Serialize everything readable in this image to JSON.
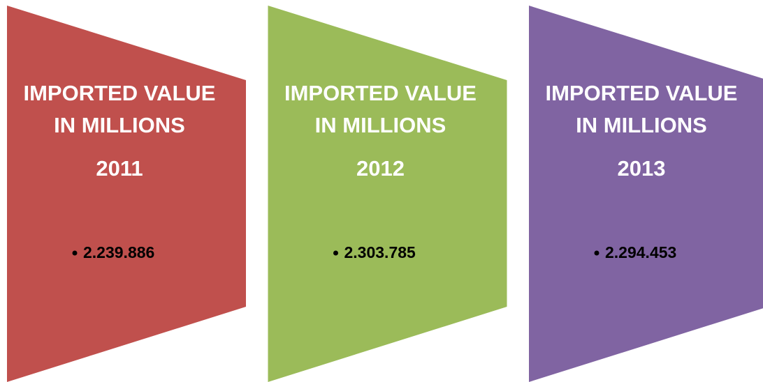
{
  "panels": [
    {
      "title_lines": [
        "IMPORTED VALUE",
        "IN MILLIONS"
      ],
      "year": "2011",
      "value": "2.239.886",
      "color": "#c0504d"
    },
    {
      "title_lines": [
        "IMPORTED VALUE",
        "IN MILLIONS"
      ],
      "year": "2012",
      "value": "2.303.785",
      "color": "#9bbb59"
    },
    {
      "title_lines": [
        "IMPORTED VALUE",
        "IN MILLIONS"
      ],
      "year": "2013",
      "value": "2.294.453",
      "color": "#8064a2"
    }
  ]
}
